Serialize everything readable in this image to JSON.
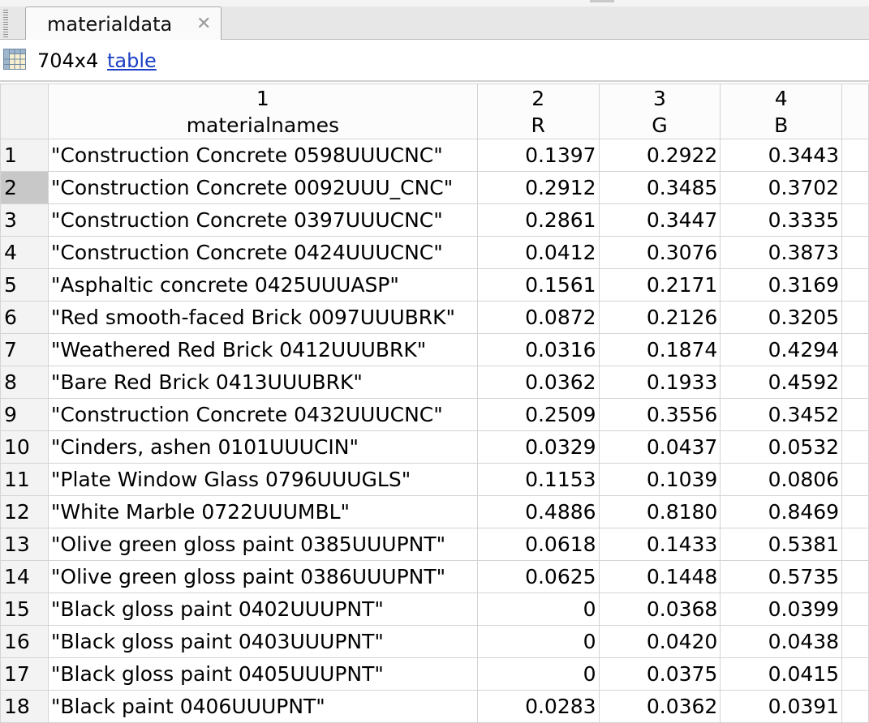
{
  "tab": {
    "title": "materialdata"
  },
  "info": {
    "size": "704x4",
    "type_link": "table"
  },
  "columns": [
    {
      "index": "1",
      "name": "materialnames"
    },
    {
      "index": "2",
      "name": "R"
    },
    {
      "index": "3",
      "name": "G"
    },
    {
      "index": "4",
      "name": "B"
    }
  ],
  "selected_row": "2",
  "rows": [
    {
      "n": "1",
      "name": "\"Construction  Concrete 0598UUUCNC\"",
      "r": "0.1397",
      "g": "0.2922",
      "b": "0.3443"
    },
    {
      "n": "2",
      "name": "\"Construction  Concrete 0092UUU_CNC\"",
      "r": "0.2912",
      "g": "0.3485",
      "b": "0.3702"
    },
    {
      "n": "3",
      "name": "\"Construction Concrete 0397UUUCNC\"",
      "r": "0.2861",
      "g": "0.3447",
      "b": "0.3335"
    },
    {
      "n": "4",
      "name": "\"Construction  Concrete 0424UUUCNC\"",
      "r": "0.0412",
      "g": "0.3076",
      "b": "0.3873"
    },
    {
      "n": "5",
      "name": "\"Asphaltic concrete 0425UUUASP\"",
      "r": "0.1561",
      "g": "0.2171",
      "b": "0.3169"
    },
    {
      "n": "6",
      "name": "\"Red smooth-faced Brick 0097UUUBRK\"",
      "r": "0.0872",
      "g": "0.2126",
      "b": "0.3205"
    },
    {
      "n": "7",
      "name": "\"Weathered Red Brick 0412UUUBRK\"",
      "r": "0.0316",
      "g": "0.1874",
      "b": "0.4294"
    },
    {
      "n": "8",
      "name": "\"Bare Red Brick 0413UUUBRK\"",
      "r": "0.0362",
      "g": "0.1933",
      "b": "0.4592"
    },
    {
      "n": "9",
      "name": "\"Construction Concrete 0432UUUCNC\"",
      "r": "0.2509",
      "g": "0.3556",
      "b": "0.3452"
    },
    {
      "n": "10",
      "name": "\"Cinders, ashen 0101UUUCIN\"",
      "r": "0.0329",
      "g": "0.0437",
      "b": "0.0532"
    },
    {
      "n": "11",
      "name": "\"Plate Window Glass 0796UUUGLS\"",
      "r": "0.1153",
      "g": "0.1039",
      "b": "0.0806"
    },
    {
      "n": "12",
      "name": "\"White Marble 0722UUUMBL\"",
      "r": "0.4886",
      "g": "0.8180",
      "b": "0.8469"
    },
    {
      "n": "13",
      "name": "\"Olive green gloss paint 0385UUUPNT\"",
      "r": "0.0618",
      "g": "0.1433",
      "b": "0.5381"
    },
    {
      "n": "14",
      "name": "\"Olive green gloss paint 0386UUUPNT\"",
      "r": "0.0625",
      "g": "0.1448",
      "b": "0.5735"
    },
    {
      "n": "15",
      "name": "\"Black gloss paint 0402UUUPNT\"",
      "r": "0",
      "g": "0.0368",
      "b": "0.0399"
    },
    {
      "n": "16",
      "name": "\"Black gloss paint 0403UUUPNT\"",
      "r": "0",
      "g": "0.0420",
      "b": "0.0438"
    },
    {
      "n": "17",
      "name": "\"Black gloss paint 0405UUUPNT\"",
      "r": "0",
      "g": "0.0375",
      "b": "0.0415"
    },
    {
      "n": "18",
      "name": "\"Black paint 0406UUUPNT\"",
      "r": "0.0283",
      "g": "0.0362",
      "b": "0.0391"
    }
  ]
}
